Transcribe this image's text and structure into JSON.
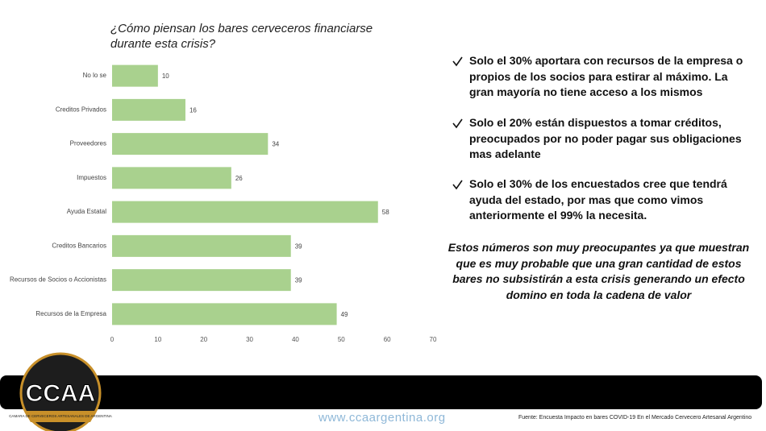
{
  "chart_data": {
    "type": "bar",
    "orientation": "horizontal",
    "title": "¿Cómo piensan los bares cerveceros  financiarse durante esta crisis?",
    "categories": [
      "No lo se",
      "Creditos Privados",
      "Proveedores",
      "Impuestos",
      "Ayuda Estatal",
      "Creditos Bancarios",
      "Recursos de Socios o Accionistas",
      "Recursos de la Empresa"
    ],
    "values": [
      10,
      16,
      34,
      26,
      58,
      39,
      39,
      49
    ],
    "color": "#a9d18e",
    "xlim": [
      0,
      70
    ],
    "xticks": [
      0,
      10,
      20,
      30,
      40,
      50,
      60,
      70
    ],
    "grid": false
  },
  "bullets": [
    "Solo el 30% aportara con recursos de la empresa o propios de los socios para estirar al máximo. La gran mayoría no tiene acceso a los mismos",
    "Solo el 20% están dispuestos a tomar créditos, preocupados por no poder pagar sus obligaciones mas adelante",
    "Solo el 30% de los encuestados cree que tendrá ayuda del estado, por mas que como vimos anteriormente el 99% la necesita."
  ],
  "conclusion": "Estos números son muy preocupantes ya que muestran que es muy probable que una gran cantidad de estos bares no subsistirán a esta crisis generando un efecto domino en toda la cadena de valor",
  "footer": {
    "logo": "CCAA",
    "logo_caption": "CAMARA DE CERVECEROS ARTESANALES DE ARGENTINA",
    "url": "www.ccaargentina.org",
    "source": "Fuente: Encuesta Impacto en bares COVID-19 En el Mercado Cervecero Artesanal Argentino"
  }
}
